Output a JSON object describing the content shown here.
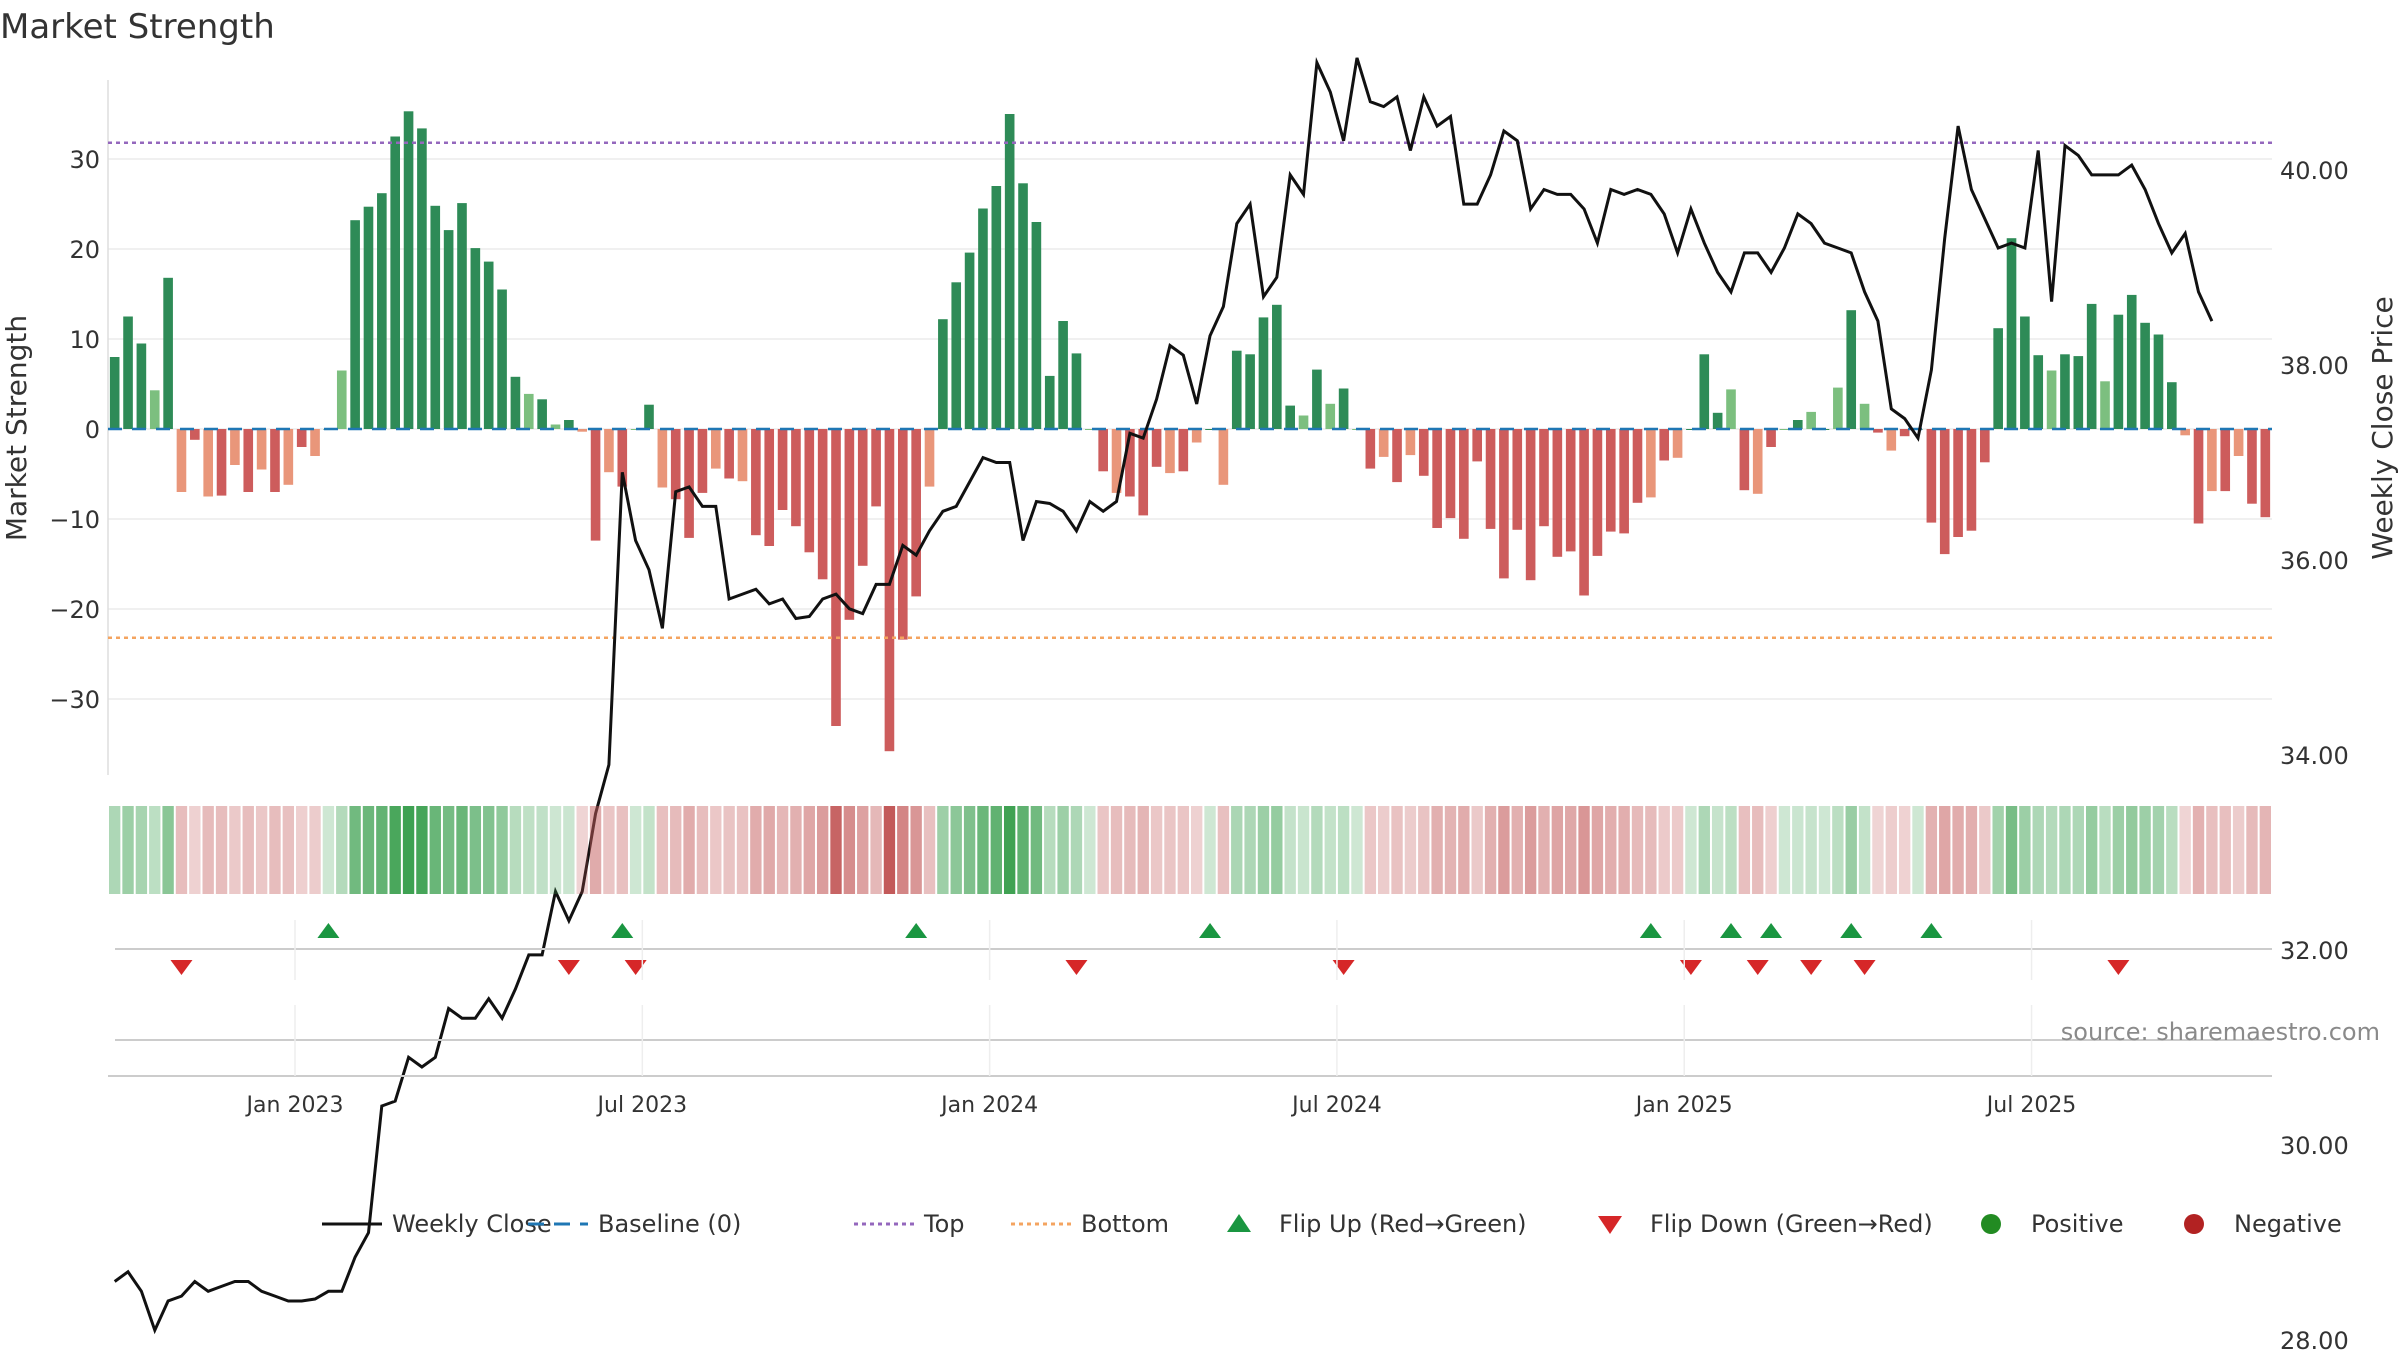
{
  "chart_data": {
    "type": "bar",
    "title": "Market Strength",
    "ylabel": "Market Strength",
    "y2label": "Weekly Close Price",
    "ylim": [
      -38,
      38
    ],
    "y2lim": [
      27.2,
      41.6
    ],
    "yticks": [
      30,
      20,
      10,
      0,
      -10,
      -20,
      -30
    ],
    "ytick_labels": [
      "30",
      "20",
      "10",
      "0",
      "−10",
      "−20",
      "−30"
    ],
    "y2ticks": [
      40,
      38,
      36,
      34,
      32,
      30,
      28
    ],
    "y2tick_labels": [
      "40.00",
      "38.00",
      "36.00",
      "34.00",
      "32.00",
      "30.00",
      "28.00"
    ],
    "top_line": 31.8,
    "bottom_line": -23.2,
    "date_ticks": [
      {
        "label": "Jan 2023",
        "week": 14
      },
      {
        "label": "Jul 2023",
        "week": 40
      },
      {
        "label": "Jan 2024",
        "week": 66
      },
      {
        "label": "Jul 2024",
        "week": 92
      },
      {
        "label": "Jan 2025",
        "week": 118
      },
      {
        "label": "Jul 2025",
        "week": 144
      }
    ],
    "strength": [
      8,
      12.5,
      9.5,
      4.3,
      16.8,
      -7,
      -1.2,
      -7.5,
      -7.4,
      -4,
      -7,
      -4.5,
      -7,
      -6.2,
      -2,
      -3,
      0,
      6.5,
      23.2,
      24.7,
      26.2,
      32.5,
      35.3,
      33.4,
      24.8,
      22.1,
      25.1,
      20.1,
      18.6,
      15.5,
      5.8,
      3.9,
      3.3,
      0.5,
      1,
      -0.3,
      -12.4,
      -4.8,
      -6.4,
      0,
      2.7,
      -6.5,
      -7.8,
      -12.1,
      -7.1,
      -4.4,
      -5.5,
      -5.8,
      -11.8,
      -13,
      -9,
      -10.8,
      -13.7,
      -16.7,
      -33,
      -21.2,
      -15.2,
      -8.6,
      -35.8,
      -23.4,
      -18.6,
      -6.4,
      12.2,
      16.3,
      19.6,
      24.5,
      27,
      35,
      27.3,
      23,
      5.9,
      12,
      8.4,
      0,
      -4.7,
      -7.1,
      -7.5,
      -9.6,
      -4.2,
      -4.9,
      -4.7,
      -1.5,
      0,
      -6.2,
      8.7,
      8.3,
      12.4,
      13.8,
      2.6,
      1.5,
      6.6,
      2.8,
      4.5,
      0,
      -4.4,
      -3.1,
      -5.9,
      -2.9,
      -5.2,
      -11,
      -9.9,
      -12.2,
      -3.6,
      -11.1,
      -16.6,
      -11.2,
      -16.8,
      -10.8,
      -14.2,
      -13.6,
      -18.5,
      -14.1,
      -11.4,
      -11.6,
      -8.2,
      -7.6,
      -3.5,
      -3.2,
      0,
      8.3,
      1.8,
      4.4,
      -6.8,
      -7.2,
      -2,
      0,
      1,
      1.9,
      0,
      4.6,
      13.2,
      2.8,
      -0.4,
      -2.4,
      -0.8,
      0,
      -10.4,
      -13.9,
      -12,
      -11.3,
      -3.7,
      11.2,
      21.2,
      12.5,
      8.2,
      6.5,
      8.3,
      8.1,
      13.9,
      5.3,
      12.7,
      14.9,
      11.8,
      10.5,
      5.2,
      -0.7,
      -10.5,
      -6.9,
      -6.9,
      -3,
      -8.3,
      -9.8
    ],
    "weekly_close": [
      28.6,
      28.7,
      28.5,
      28.1,
      28.4,
      28.45,
      28.6,
      28.5,
      28.55,
      28.6,
      28.6,
      28.5,
      28.45,
      28.4,
      28.4,
      28.42,
      28.5,
      28.5,
      28.85,
      29.1,
      30.4,
      30.45,
      30.9,
      30.8,
      30.9,
      31.4,
      31.3,
      31.3,
      31.5,
      31.3,
      31.6,
      31.95,
      31.95,
      32.6,
      32.3,
      32.6,
      33.4,
      33.9,
      36.9,
      36.2,
      35.9,
      35.3,
      36.7,
      36.75,
      36.55,
      36.55,
      35.6,
      35.65,
      35.7,
      35.55,
      35.6,
      35.4,
      35.42,
      35.6,
      35.65,
      35.5,
      35.45,
      35.75,
      35.75,
      36.15,
      36.05,
      36.3,
      36.5,
      36.55,
      36.8,
      37.05,
      37,
      37,
      36.2,
      36.6,
      36.58,
      36.5,
      36.3,
      36.6,
      36.5,
      36.6,
      37.3,
      37.25,
      37.65,
      38.2,
      38.1,
      37.6,
      38.3,
      38.6,
      39.45,
      39.65,
      38.7,
      38.9,
      39.95,
      39.75,
      41.1,
      40.8,
      40.3,
      41.15,
      40.7,
      40.65,
      40.75,
      40.2,
      40.75,
      40.45,
      40.55,
      39.65,
      39.65,
      39.95,
      40.4,
      40.3,
      39.6,
      39.8,
      39.75,
      39.75,
      39.6,
      39.25,
      39.8,
      39.75,
      39.8,
      39.75,
      39.55,
      39.15,
      39.6,
      39.25,
      38.95,
      38.75,
      39.15,
      39.15,
      38.95,
      39.2,
      39.55,
      39.45,
      39.25,
      39.2,
      39.15,
      38.75,
      38.45,
      37.55,
      37.45,
      37.25,
      37.95,
      39.3,
      40.45,
      39.8,
      39.5,
      39.2,
      39.25,
      39.2,
      40.2,
      38.65,
      40.25,
      40.15,
      39.95,
      39.95,
      39.95,
      40.05,
      39.8,
      39.45,
      39.15,
      39.35,
      38.75,
      38.45
    ],
    "flip_up_weeks": [
      16,
      38,
      60,
      82,
      115,
      121,
      124,
      130,
      136
    ],
    "flip_down_weeks": [
      5,
      34,
      39,
      72,
      92,
      118,
      123,
      127,
      131,
      150
    ],
    "source_text": "source: sharemaestro.com",
    "legend": [
      {
        "label": "Weekly Close",
        "symbol": "line"
      },
      {
        "label": "Baseline (0)",
        "symbol": "dash"
      },
      {
        "label": "Top",
        "symbol": "dot-purple"
      },
      {
        "label": "Bottom",
        "symbol": "dot-orange"
      },
      {
        "label": "Flip Up (Red→Green)",
        "symbol": "tri-up"
      },
      {
        "label": "Flip Down (Green→Red)",
        "symbol": "tri-down"
      },
      {
        "label": "Positive",
        "symbol": "circle-green"
      },
      {
        "label": "Negative",
        "symbol": "circle-red"
      }
    ],
    "grid": true,
    "legend_position": "bottom"
  },
  "colors": {
    "pos_strong": "#2e8b57",
    "pos_light": "#7cbf7f",
    "neg_strong": "#cd5c5c",
    "neg_light": "#e9967a",
    "close_line": "#111111",
    "baseline": "#1f77b4",
    "top_line": "#9467bd",
    "bottom_line": "#f4a460",
    "flip_up": "#1a9641",
    "flip_down": "#d62728",
    "positive_dot": "#228b22",
    "negative_dot": "#b22222",
    "text": "#333333",
    "source": "#8a8a8a"
  }
}
